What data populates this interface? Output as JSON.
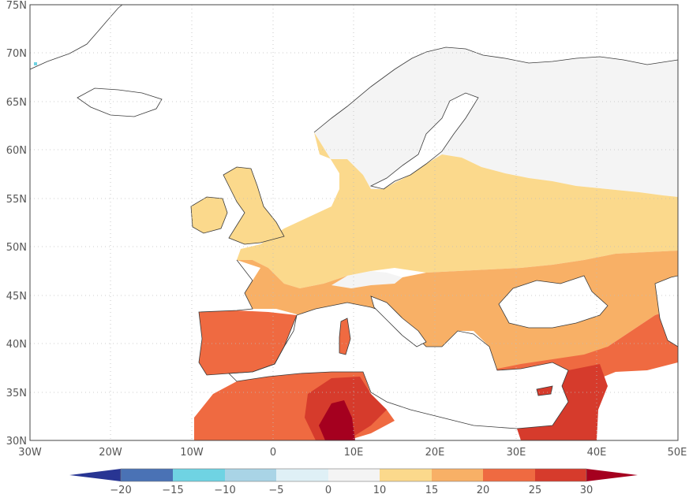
{
  "map": {
    "lat_labels": [
      "75N",
      "70N",
      "65N",
      "60N",
      "55N",
      "50N",
      "45N",
      "40N",
      "35N",
      "30N"
    ],
    "lon_labels": [
      "30W",
      "20W",
      "10W",
      "0",
      "10E",
      "20E",
      "30E",
      "40E",
      "50E"
    ],
    "extent": {
      "lon": [
        -30,
        50
      ],
      "lat": [
        30,
        75
      ]
    }
  },
  "legend": {
    "labels": [
      "−20",
      "−15",
      "−10",
      "−5",
      "0",
      "10",
      "15",
      "20",
      "25",
      "30"
    ],
    "colors": {
      "below_min": "#283593",
      "c1": "#4a72b5",
      "c2": "#6fd3e3",
      "c3": "#a9d4e6",
      "c4": "#dff0f6",
      "c5": "#f4f4f4",
      "c6": "#fbd98c",
      "c7": "#f8b066",
      "c8": "#ef6a41",
      "c9": "#d63b2c",
      "above_max": "#a5001f"
    }
  },
  "colors": {
    "land_cold": "#f4f4f4",
    "band_10_15": "#fbd98c",
    "band_15_20": "#f8b066",
    "band_20_25": "#ef6a41",
    "band_25_30": "#d63b2c",
    "band_above_30": "#a5001f",
    "coastline": "#3a3a3a",
    "gridline": "#bdbdbd"
  }
}
